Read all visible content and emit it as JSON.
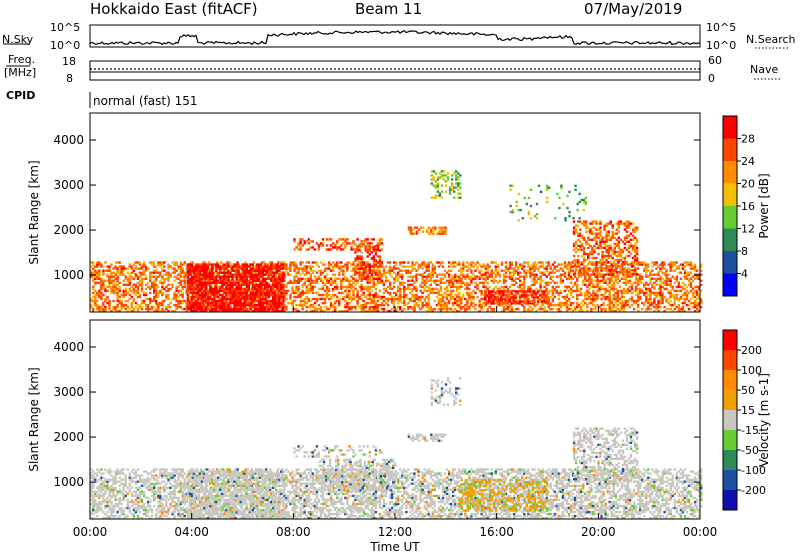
{
  "header": {
    "title": "Hokkaido East (fitACF)",
    "beam": "Beam 11",
    "date": "07/May/2019"
  },
  "params": {
    "nsky_label": "N.Sky",
    "nsky_ticks": [
      "10^5",
      "10^0"
    ],
    "nsearch_label": "N.Search",
    "nsearch_ticks": [
      "10^5",
      "10^0"
    ],
    "freq_label_1": "Freq.",
    "freq_label_2": "[MHz]",
    "freq_ticks": [
      "18",
      "8"
    ],
    "nave_label": "Nave",
    "nave_ticks": [
      "60",
      "0"
    ],
    "cpid_label": "CPID",
    "cpid_text": "normal (fast) 151"
  },
  "chart_data": [
    {
      "type": "heatmap",
      "title": "",
      "xlabel": "Time UT",
      "ylabel": "Slant Range [km]",
      "xlim": [
        0,
        24
      ],
      "ylim": [
        180,
        4600
      ],
      "x_ticks": [
        "00:00",
        "04:00",
        "08:00",
        "12:00",
        "16:00",
        "20:00",
        "00:00"
      ],
      "y_ticks": [
        1000,
        2000,
        3000,
        4000
      ],
      "colorbar": {
        "label": "Power [dB]",
        "range": [
          0,
          30
        ],
        "ticks": [
          4,
          8,
          12,
          16,
          20,
          24,
          28
        ],
        "colors": [
          "#0000ff",
          "#1e50a0",
          "#2e8b57",
          "#66cc33",
          "#f2c000",
          "#ff8c00",
          "#ff4500",
          "#ff0000"
        ]
      },
      "echo_regions": [
        {
          "t0": 0.0,
          "t1": 24.0,
          "r0": 180,
          "r1": 1300,
          "value": 22,
          "density": 0.5
        },
        {
          "t0": 3.8,
          "t1": 7.6,
          "r0": 180,
          "r1": 1250,
          "value": 28,
          "density": 0.8
        },
        {
          "t0": 10.4,
          "t1": 11.4,
          "r0": 900,
          "r1": 1700,
          "value": 26,
          "density": 0.55
        },
        {
          "t0": 13.4,
          "t1": 14.6,
          "r0": 2700,
          "r1": 3300,
          "value": 14,
          "density": 0.3
        },
        {
          "t0": 12.5,
          "t1": 14.0,
          "r0": 1900,
          "r1": 2050,
          "value": 21,
          "density": 0.6
        },
        {
          "t0": 19.0,
          "t1": 21.5,
          "r0": 1000,
          "r1": 2200,
          "value": 23,
          "density": 0.45
        },
        {
          "t0": 15.5,
          "t1": 18.0,
          "r0": 350,
          "r1": 650,
          "value": 26,
          "density": 0.55
        },
        {
          "t0": 8.0,
          "t1": 11.5,
          "r0": 1550,
          "r1": 1800,
          "value": 24,
          "density": 0.35
        },
        {
          "t0": 16.5,
          "t1": 19.5,
          "r0": 2200,
          "r1": 3000,
          "value": 12,
          "density": 0.08
        }
      ]
    },
    {
      "type": "heatmap",
      "title": "",
      "xlabel": "Time UT",
      "ylabel": "Slant Range [km]",
      "xlim": [
        0,
        24
      ],
      "ylim": [
        180,
        4600
      ],
      "x_ticks": [
        "00:00",
        "04:00",
        "08:00",
        "12:00",
        "16:00",
        "20:00",
        "00:00"
      ],
      "y_ticks": [
        1000,
        2000,
        3000,
        4000
      ],
      "colorbar": {
        "label": "Velocity [m s-1]",
        "ticks": [
          "200",
          "100",
          "50",
          "15",
          "-15",
          "-50",
          "-100",
          "-200"
        ],
        "colors": [
          "#1010b0",
          "#1e50a0",
          "#2e8b57",
          "#66cc33",
          "#c8c8c0",
          "#f2a000",
          "#ff8c00",
          "#ff4500",
          "#ff0000"
        ]
      },
      "echo_regions": [
        {
          "t0": 0.0,
          "t1": 24.0,
          "r0": 180,
          "r1": 1300,
          "value": 0,
          "density": 0.55
        },
        {
          "t0": 3.8,
          "t1": 7.6,
          "r0": 180,
          "r1": 1250,
          "value": 0,
          "density": 0.6
        },
        {
          "t0": 14.5,
          "t1": 18.0,
          "r0": 350,
          "r1": 1050,
          "value": -40,
          "density": 0.45
        },
        {
          "t0": 19.0,
          "t1": 21.5,
          "r0": 1000,
          "r1": 2200,
          "value": 0,
          "density": 0.45
        },
        {
          "t0": 13.4,
          "t1": 14.6,
          "r0": 2700,
          "r1": 3300,
          "value": 0,
          "density": 0.25
        },
        {
          "t0": 12.5,
          "t1": 14.0,
          "r0": 1900,
          "r1": 2050,
          "value": 0,
          "density": 0.55
        },
        {
          "t0": 8.0,
          "t1": 11.5,
          "r0": 1550,
          "r1": 1800,
          "value": 0,
          "density": 0.3
        },
        {
          "t0": 9.0,
          "t1": 12.0,
          "r0": 800,
          "r1": 1500,
          "value": 0,
          "density": 0.5
        }
      ]
    }
  ]
}
